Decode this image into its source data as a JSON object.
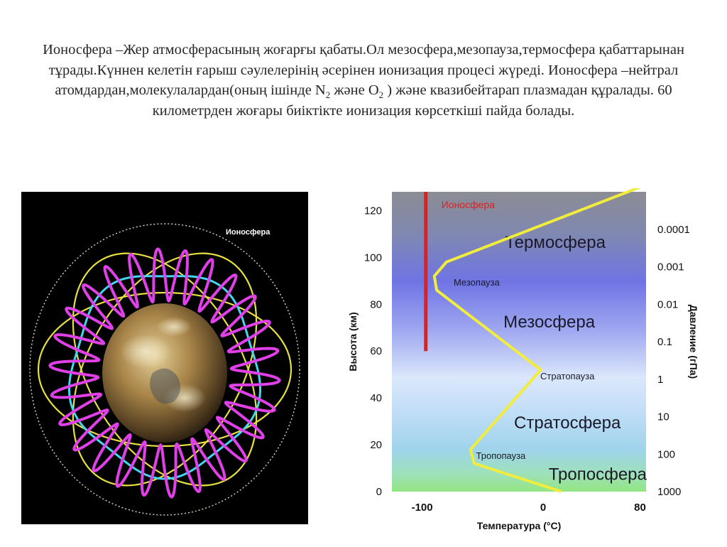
{
  "slide_text": {
    "part1": "Ионосфера –Жер атмосферасының жоғарғы қабаты.Ол мезосфера,мезопауза,термосфера қабаттарынан тұрады.Күннен келетін ғарыш сәулелерінің әсерінен  ионизация процесі жүреді. Ионосфера –нейтрал атомдардан,молекулалардан(оның ішінде N",
    "sub1": "2",
    "part2": "   және О",
    "sub2": "2",
    "part3": " ) және  квазибейтарап плазмадан құралады. 60 километрден жоғары биіктікте  ионизация көрсеткіші пайда болады."
  },
  "image": {
    "label": "Ионосфера",
    "colors": {
      "background": "#000000",
      "magenta": "#e040e8",
      "cyan": "#40d8f0",
      "yellow": "#e8e040",
      "globe": "#b8975a"
    }
  },
  "chart_data": {
    "type": "line",
    "xlabel": "Температура (°С)",
    "ylabel": "Высота (км)",
    "y2label": "Давление (гПа)",
    "xlim": [
      -125,
      85
    ],
    "ylim": [
      0,
      128
    ],
    "x_ticks": [
      "-100",
      "0",
      "80"
    ],
    "x_tick_values": [
      -100,
      0,
      80
    ],
    "y_ticks": [
      0,
      20,
      40,
      60,
      80,
      100,
      120
    ],
    "pressure_ticks": [
      {
        "label": "1000",
        "height": 0
      },
      {
        "label": "100",
        "height": 16
      },
      {
        "label": "10",
        "height": 32
      },
      {
        "label": "1",
        "height": 48
      },
      {
        "label": "0.1",
        "height": 64
      },
      {
        "label": "0.01",
        "height": 80
      },
      {
        "label": "0.001",
        "height": 96
      },
      {
        "label": "0.0001",
        "height": 112
      }
    ],
    "temperature_profile": {
      "x": [
        15,
        -57,
        -60,
        -2,
        -88,
        -90,
        -80,
        80
      ],
      "y": [
        0,
        12,
        18,
        52,
        86,
        92,
        98,
        130
      ],
      "color": "#f2ec3c"
    },
    "ionosphere_bar": {
      "label": "Ионосфера",
      "x": -97,
      "y": [
        60,
        130
      ],
      "color": "#e0201c"
    },
    "layers": [
      {
        "label": "Термосфера",
        "x": 10,
        "y": 104,
        "size": "large"
      },
      {
        "label": "Мезопауза",
        "x": -55,
        "y": 88,
        "size": "small"
      },
      {
        "label": "Мезосфера",
        "x": 5,
        "y": 70,
        "size": "large"
      },
      {
        "label": "Стратопауза",
        "x": 20,
        "y": 48,
        "size": "small"
      },
      {
        "label": "Стратосфера",
        "x": 20,
        "y": 27,
        "size": "large"
      },
      {
        "label": "Тропопауза",
        "x": -35,
        "y": 14,
        "size": "small"
      },
      {
        "label": "Тропосфера",
        "x": 45,
        "y": 5,
        "size": "large"
      }
    ]
  }
}
